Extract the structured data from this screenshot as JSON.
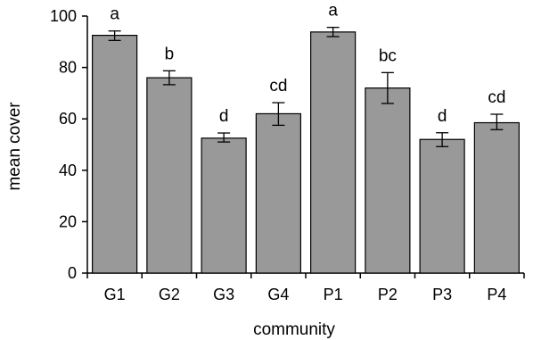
{
  "chart_data": {
    "type": "bar",
    "categories": [
      "G1",
      "G2",
      "G3",
      "G4",
      "P1",
      "P2",
      "P3",
      "P4"
    ],
    "values": [
      92.5,
      76,
      52.5,
      62,
      93.8,
      72,
      52,
      58.5
    ],
    "error_low": [
      90.5,
      73.3,
      51.0,
      57.5,
      92.0,
      66.0,
      49.2,
      55.8
    ],
    "error_high": [
      94.2,
      78.7,
      54.5,
      66.3,
      95.6,
      78.0,
      54.6,
      61.8
    ],
    "significance_labels": [
      "a",
      "b",
      "d",
      "cd",
      "a",
      "bc",
      "d",
      "cd"
    ],
    "xlabel": "community",
    "ylabel": "mean cover",
    "ylim": [
      0,
      100
    ],
    "yticks": [
      0,
      20,
      40,
      60,
      80,
      100
    ],
    "grid": false,
    "colors": {
      "bar": "#999999",
      "bar_stroke": "#000000",
      "axis": "#000000"
    }
  }
}
